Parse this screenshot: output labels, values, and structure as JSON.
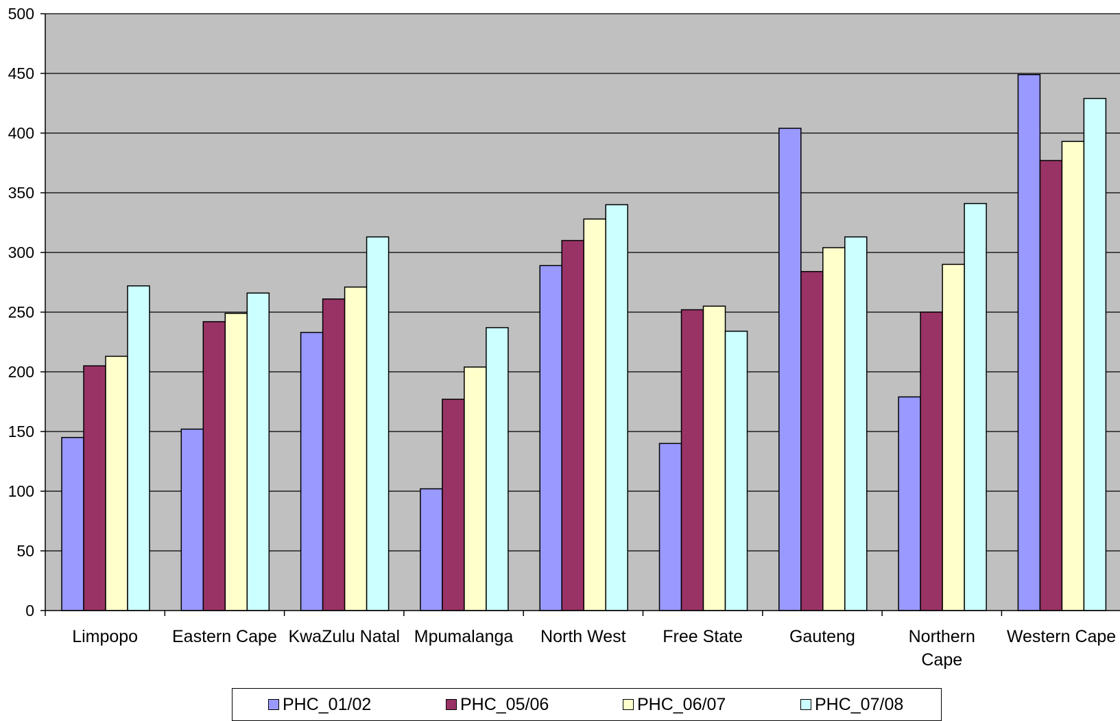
{
  "chart_data": {
    "type": "bar",
    "categories": [
      "Limpopo",
      "Eastern Cape",
      "KwaZulu Natal",
      "Mpumalanga",
      "North West",
      "Free State",
      "Gauteng",
      "Northern Cape",
      "Western Cape"
    ],
    "category_labels": [
      [
        "Limpopo"
      ],
      [
        "Eastern Cape"
      ],
      [
        "KwaZulu Natal"
      ],
      [
        "Mpumalanga"
      ],
      [
        "North West"
      ],
      [
        "Free State"
      ],
      [
        "Gauteng"
      ],
      [
        "Northern",
        "Cape"
      ],
      [
        "Western Cape"
      ]
    ],
    "series": [
      {
        "name": "PHC_01/02",
        "color": "#9999FF",
        "values": [
          145,
          152,
          233,
          102,
          289,
          140,
          404,
          179,
          449
        ]
      },
      {
        "name": "PHC_05/06",
        "color": "#993366",
        "values": [
          205,
          242,
          261,
          177,
          310,
          252,
          284,
          250,
          377
        ]
      },
      {
        "name": "PHC_06/07",
        "color": "#FFFFCC",
        "values": [
          213,
          249,
          271,
          204,
          328,
          255,
          304,
          290,
          393
        ]
      },
      {
        "name": "PHC_07/08",
        "color": "#CCFFFF",
        "values": [
          272,
          266,
          313,
          237,
          340,
          234,
          313,
          341,
          429
        ]
      }
    ],
    "ylim": [
      0,
      500
    ],
    "yticks": [
      "0",
      "50",
      "100",
      "150",
      "200",
      "250",
      "300",
      "350",
      "400",
      "450",
      "500"
    ],
    "grid": true,
    "plot_background": "#C0C0C0",
    "legend_position": "bottom",
    "title": "",
    "xlabel": "",
    "ylabel": ""
  }
}
